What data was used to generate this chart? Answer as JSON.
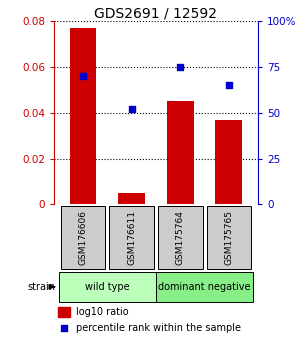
{
  "title": "GDS2691 / 12592",
  "samples": [
    "GSM176606",
    "GSM176611",
    "GSM175764",
    "GSM175765"
  ],
  "log10_ratio": [
    0.077,
    0.005,
    0.045,
    0.037
  ],
  "percentile_rank": [
    70,
    52,
    75,
    65
  ],
  "group_configs": [
    {
      "xstart": -0.5,
      "xend": 1.5,
      "label": "wild type",
      "color": "#bbffbb"
    },
    {
      "xstart": 1.5,
      "xend": 3.5,
      "label": "dominant negative",
      "color": "#88ee88"
    }
  ],
  "ylim_left": [
    0,
    0.08
  ],
  "ylim_right": [
    0,
    100
  ],
  "yticks_left": [
    0,
    0.02,
    0.04,
    0.06,
    0.08
  ],
  "yticks_right": [
    0,
    25,
    50,
    75,
    100
  ],
  "ytick_labels_left": [
    "0",
    "0.02",
    "0.04",
    "0.06",
    "0.08"
  ],
  "ytick_labels_right": [
    "0",
    "25",
    "50",
    "75",
    "100%"
  ],
  "bar_color": "#cc0000",
  "dot_color": "#0000cc",
  "label_box_color": "#cccccc",
  "strain_label": "strain",
  "legend_bar_label": "log10 ratio",
  "legend_dot_label": "percentile rank within the sample",
  "title_color": "#000000",
  "left_axis_color": "#cc0000",
  "right_axis_color": "#0000cc"
}
